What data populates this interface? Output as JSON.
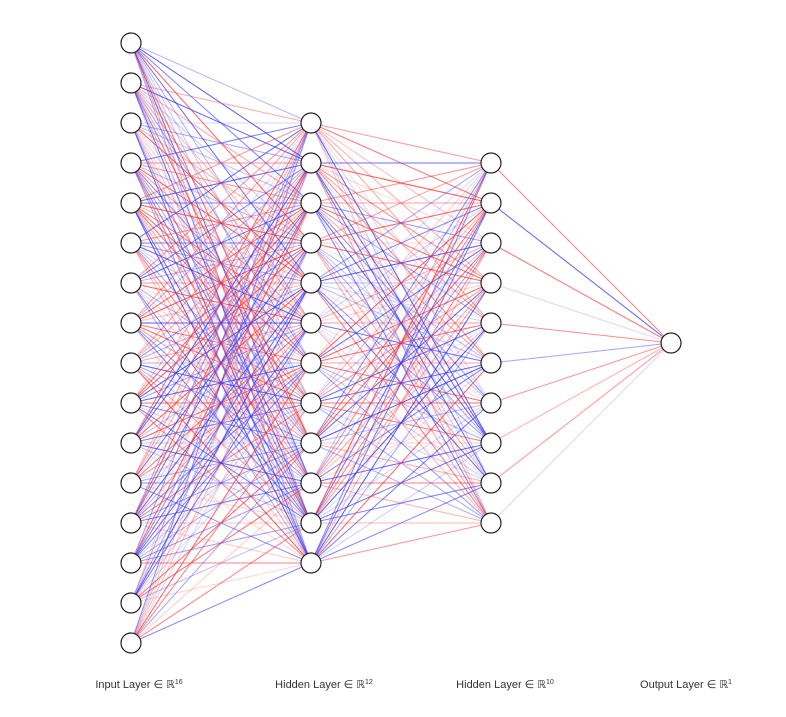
{
  "network": {
    "layers": [
      {
        "name": "input",
        "units": 16,
        "label_text": "Input Layer ∈ ℝ",
        "label_sup": "16"
      },
      {
        "name": "hidden1",
        "units": 12,
        "label_text": "Hidden Layer ∈ ℝ",
        "label_sup": "12"
      },
      {
        "name": "hidden2",
        "units": 10,
        "label_text": "Hidden Layer ∈ ℝ",
        "label_sup": "10"
      },
      {
        "name": "output",
        "units": 1,
        "label_text": "Output Layer ∈ ℝ",
        "label_sup": "1"
      }
    ],
    "colors": {
      "positive_edge": "#ff3333",
      "negative_edge": "#3333ff",
      "node_fill": "#ffffff",
      "node_stroke": "#222222"
    }
  }
}
